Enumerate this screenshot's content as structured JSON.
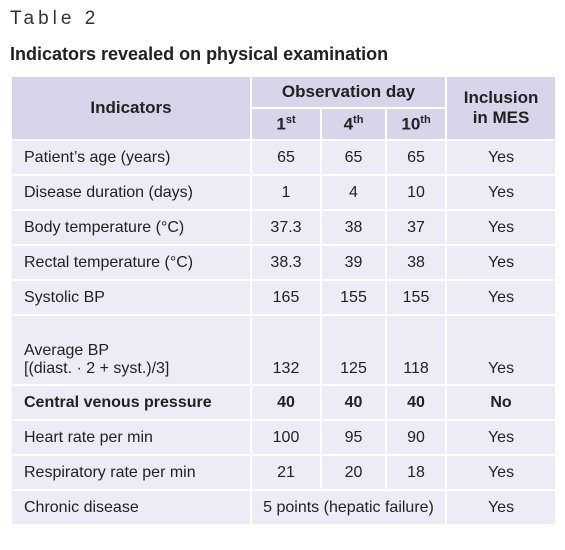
{
  "caption": "Table 2",
  "title": "Indicators revealed on physical examination",
  "table": {
    "header": {
      "indicators": "Indicators",
      "observation_day": "Observation day",
      "days": [
        {
          "number": "1",
          "suffix": "st"
        },
        {
          "number": "4",
          "suffix": "th"
        },
        {
          "number": "10",
          "suffix": "th"
        }
      ],
      "inclusion": [
        "Inclusion",
        "in MES"
      ]
    },
    "rows": [
      {
        "label": [
          "Patient’s age (years)"
        ],
        "values": [
          65,
          65,
          65
        ],
        "inclusion": "Yes"
      },
      {
        "label": [
          "Disease duration (days)"
        ],
        "values": [
          1,
          4,
          10
        ],
        "inclusion": "Yes"
      },
      {
        "label": [
          "Body temperature (°C)"
        ],
        "values": [
          37.3,
          38,
          37
        ],
        "inclusion": "Yes"
      },
      {
        "label": [
          "Rectal temperature (°C)"
        ],
        "values": [
          38.3,
          39,
          38
        ],
        "inclusion": "Yes"
      },
      {
        "label": [
          "Systolic BP"
        ],
        "values": [
          165,
          155,
          155
        ],
        "inclusion": "Yes"
      },
      {
        "label": [
          "Average BP",
          "[(diast. · 2 + syst.)/3]"
        ],
        "values": [
          132,
          125,
          118
        ],
        "inclusion": "Yes"
      },
      {
        "label": [
          "Central venous pressure"
        ],
        "values": [
          40,
          40,
          40
        ],
        "inclusion": "No",
        "bold": true
      },
      {
        "label": [
          "Heart rate per min"
        ],
        "values": [
          100,
          95,
          90
        ],
        "inclusion": "Yes"
      },
      {
        "label": [
          "Respiratory rate per min"
        ],
        "values": [
          21,
          20,
          18
        ],
        "inclusion": "Yes"
      },
      {
        "label": [
          "Chronic disease"
        ],
        "values": [
          "5 points (hepatic failure)"
        ],
        "inclusion": "Yes"
      }
    ]
  }
}
